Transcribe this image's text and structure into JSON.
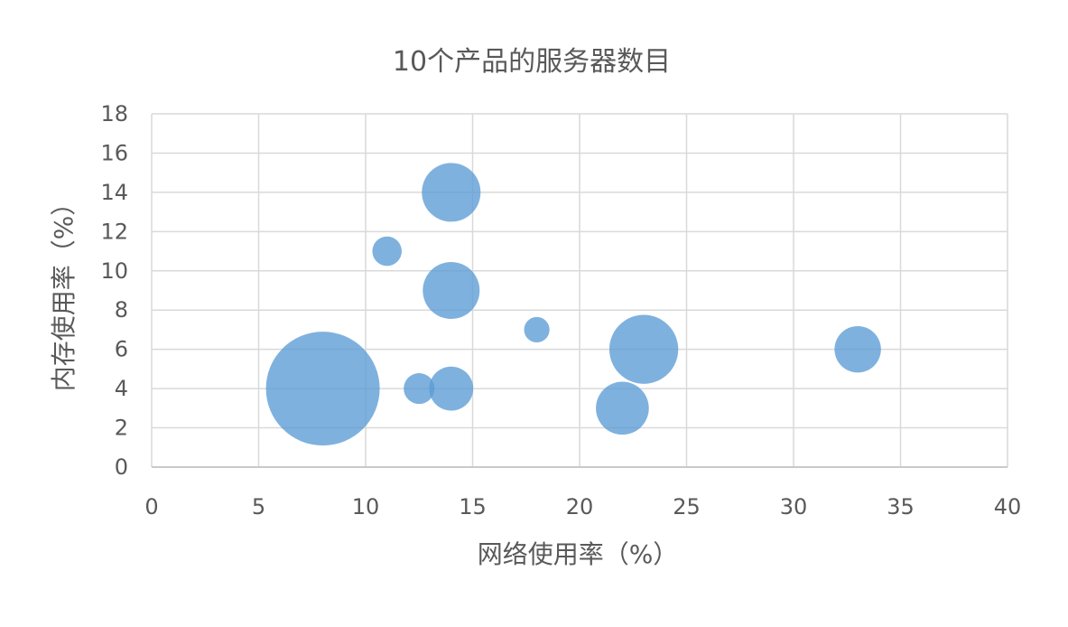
{
  "chart_data": {
    "type": "scatter",
    "variant": "bubble",
    "title": "10个产品的服务器数目",
    "xlabel": "网络使用率（%）",
    "ylabel": "内存使用率（%）",
    "xlim": [
      0,
      40
    ],
    "ylim": [
      0,
      18
    ],
    "x_ticks": [
      "0",
      "5",
      "10",
      "15",
      "20",
      "25",
      "30",
      "35",
      "40"
    ],
    "y_ticks": [
      "0",
      "2",
      "4",
      "6",
      "8",
      "10",
      "12",
      "14",
      "16",
      "18"
    ],
    "grid": true,
    "legend": "none",
    "bubble_color": "#5b9bd5",
    "points": [
      {
        "x": 8,
        "y": 4,
        "size": 30
      },
      {
        "x": 11,
        "y": 11,
        "size": 2
      },
      {
        "x": 12.5,
        "y": 4,
        "size": 2.2
      },
      {
        "x": 14,
        "y": 14,
        "size": 8
      },
      {
        "x": 14,
        "y": 9,
        "size": 7.5
      },
      {
        "x": 14,
        "y": 4,
        "size": 4.5
      },
      {
        "x": 18,
        "y": 7,
        "size": 1.5
      },
      {
        "x": 22,
        "y": 3,
        "size": 6.5
      },
      {
        "x": 23,
        "y": 6,
        "size": 11
      },
      {
        "x": 33,
        "y": 6,
        "size": 5
      }
    ]
  }
}
